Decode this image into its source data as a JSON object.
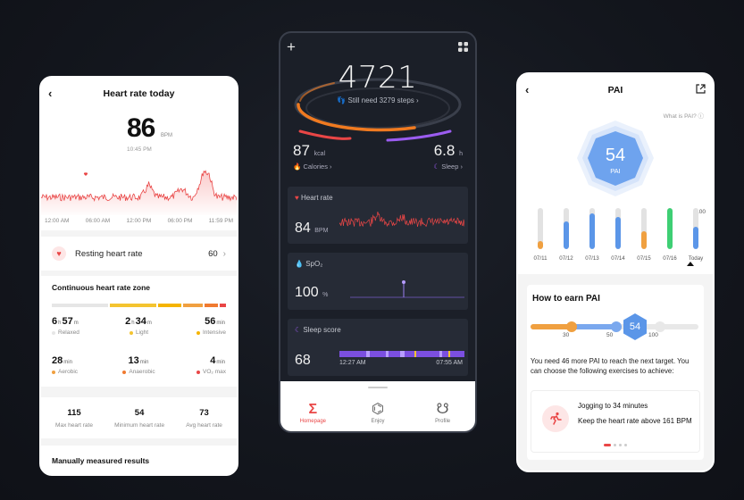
{
  "heart_rate": {
    "title": "Heart rate today",
    "current_bpm": "86",
    "bpm_unit": "BPM",
    "time": "10:45 PM",
    "axis_labels": [
      "12:00 AM",
      "06:00 AM",
      "12:00 PM",
      "06:00 PM",
      "11:59 PM"
    ],
    "resting_label": "Resting heart rate",
    "resting_value": "60",
    "zone_title": "Continuous heart rate zone",
    "zones": [
      {
        "big1": "6",
        "u1": "h",
        "big2": "57",
        "u2": "m",
        "label": "Relaxed",
        "color": "#e6e6e6"
      },
      {
        "big1": "2",
        "u1": "h",
        "big2": "34",
        "u2": "m",
        "label": "Light",
        "color": "#f4c430"
      },
      {
        "big1": "",
        "u1": "",
        "big2": "56",
        "u2": "min",
        "label": "Intensive",
        "color": "#f5b400"
      },
      {
        "big1": "",
        "u1": "",
        "big2": "28",
        "u2": "min",
        "label": "Aerobic",
        "color": "#f0a040"
      },
      {
        "big1": "",
        "u1": "",
        "big2": "13",
        "u2": "min",
        "label": "Anaerobic",
        "color": "#f07a30"
      },
      {
        "big1": "",
        "u1": "",
        "big2": "4",
        "u2": "min",
        "label": "VO₂ max",
        "color": "#e94646"
      }
    ],
    "stats": [
      {
        "value": "115",
        "label": "Max heart rate"
      },
      {
        "value": "54",
        "label": "Minimum heart rate"
      },
      {
        "value": "73",
        "label": "Avg heart rate"
      }
    ],
    "manual_label": "Manually measured results"
  },
  "dashboard": {
    "steps": "4721",
    "steps_hint": "Still need 3279 steps",
    "calories_value": "87",
    "calories_unit": "kcal",
    "calories_label": "Calories",
    "sleep_value": "6.8",
    "sleep_unit": "h",
    "sleep_label": "Sleep",
    "hr_card_title": "Heart rate",
    "hr_card_value": "84",
    "hr_card_unit": "BPM",
    "spo2_title": "SpO₂",
    "spo2_value": "100",
    "spo2_unit": "%",
    "sleep_score_title": "Sleep score",
    "sleep_score_value": "68",
    "sleep_start": "12:27 AM",
    "sleep_end": "07:55 AM",
    "tabs": [
      "Homepage",
      "Enjoy",
      "Profile"
    ]
  },
  "pai": {
    "title": "PAI",
    "what_label": "What is PAI?",
    "score": "54",
    "score_label": "PAI",
    "max_label": "100",
    "bars": [
      {
        "date": "07/11",
        "value": 20,
        "color": "#f0a040"
      },
      {
        "date": "07/12",
        "value": 68,
        "color": "#5b96e8"
      },
      {
        "date": "07/13",
        "value": 88,
        "color": "#5b96e8"
      },
      {
        "date": "07/14",
        "value": 78,
        "color": "#5b96e8"
      },
      {
        "date": "07/15",
        "value": 44,
        "color": "#f0a040"
      },
      {
        "date": "07/16",
        "value": 100,
        "color": "#3ecf74"
      },
      {
        "date": "Today",
        "value": 54,
        "color": "#5b96e8"
      }
    ],
    "earn_title": "How to earn PAI",
    "ticks": [
      "30",
      "50",
      "100"
    ],
    "earn_text": "You need 46 more PAI to reach the next target. You can choose the following exercises to achieve:",
    "exercise_1": "Jogging to 34 minutes",
    "exercise_2": "Keep the heart rate above 161 BPM"
  }
}
